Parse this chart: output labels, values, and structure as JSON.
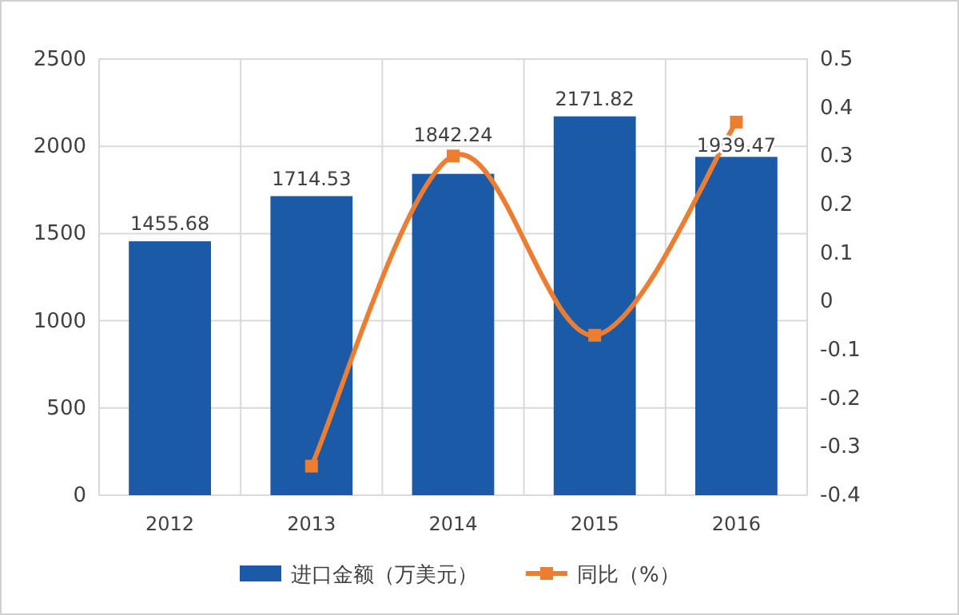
{
  "chart_data": {
    "type": "bar",
    "categories": [
      "2012",
      "2013",
      "2014",
      "2015",
      "2016"
    ],
    "series": [
      {
        "name": "进口金额（万美元）",
        "type": "bar",
        "color": "#1b5aa6",
        "values": [
          1455.68,
          1714.53,
          1842.24,
          2171.82,
          1939.47
        ],
        "value_labels": [
          "1455.68",
          "1714.53",
          "1842.24",
          "2171.82",
          "1939.47"
        ]
      },
      {
        "name": "同比（%）",
        "type": "line",
        "axis": "y2",
        "color": "#ed7d31",
        "marker": "square",
        "values": [
          null,
          -0.34,
          0.3,
          -0.07,
          0.37
        ]
      }
    ],
    "ylim": [
      0,
      2500
    ],
    "yticks": [
      0,
      500,
      1000,
      1500,
      2000,
      2500
    ],
    "y2lim": [
      -0.4,
      0.5
    ],
    "y2ticks": [
      -0.4,
      -0.3,
      -0.2,
      -0.1,
      0,
      0.1,
      0.2,
      0.3,
      0.4,
      0.5
    ],
    "grid": "y",
    "legend": "bottom"
  }
}
